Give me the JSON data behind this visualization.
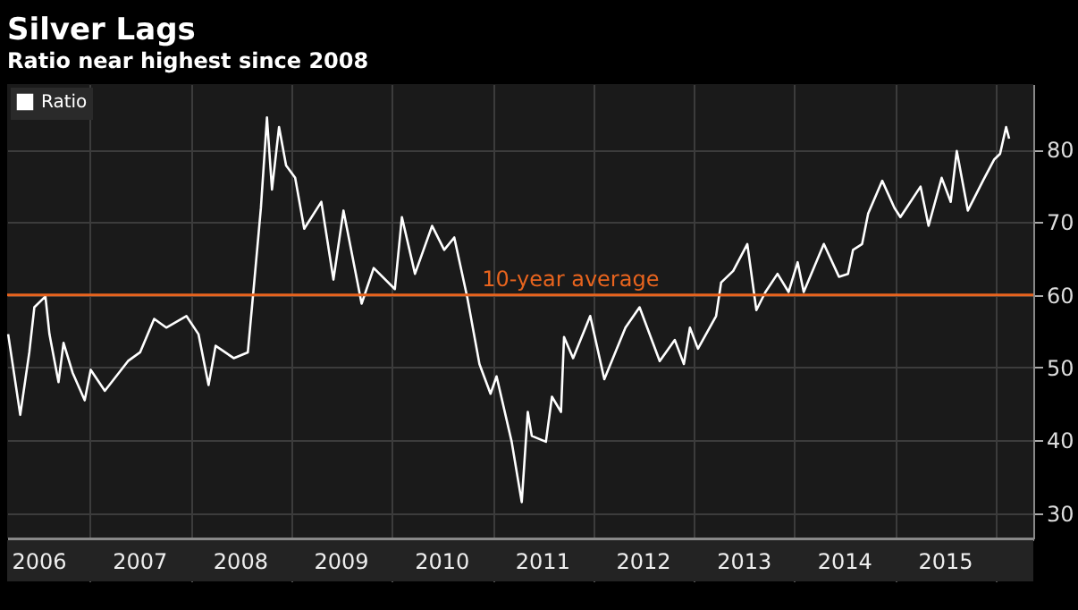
{
  "chart_data": {
    "type": "line",
    "title": "Silver Lags",
    "subtitle": "Ratio near highest since 2008",
    "xlim": [
      2006.18,
      2016.37
    ],
    "xticks": [
      {
        "value": 2006.5,
        "label": "2006"
      },
      {
        "value": 2007,
        "label": null
      },
      {
        "value": 2007.5,
        "label": "2007"
      },
      {
        "value": 2008,
        "label": null
      },
      {
        "value": 2008.5,
        "label": "2008"
      },
      {
        "value": 2009,
        "label": null
      },
      {
        "value": 2009.5,
        "label": "2009"
      },
      {
        "value": 2010,
        "label": null
      },
      {
        "value": 2010.5,
        "label": "2010"
      },
      {
        "value": 2011,
        "label": null
      },
      {
        "value": 2011.5,
        "label": "2011"
      },
      {
        "value": 2012,
        "label": null
      },
      {
        "value": 2012.5,
        "label": "2012"
      },
      {
        "value": 2013,
        "label": null
      },
      {
        "value": 2013.5,
        "label": "2013"
      },
      {
        "value": 2014,
        "label": null
      },
      {
        "value": 2014.5,
        "label": "2014"
      },
      {
        "value": 2015,
        "label": null
      },
      {
        "value": 2015.5,
        "label": "2015"
      },
      {
        "value": 2016,
        "label": null
      }
    ],
    "ylim": [
      26.5,
      89
    ],
    "yticks": [
      30,
      40,
      50,
      60,
      70,
      80
    ],
    "grid": true,
    "legend": "top left",
    "ref_lines": [
      {
        "axis": "y",
        "value": 60,
        "label": "10-year average",
        "color": "#e8641e"
      }
    ],
    "series": [
      {
        "name": "Ratio",
        "color": "#ffffff",
        "x": [
          2006.19,
          2006.31,
          2006.4,
          2006.45,
          2006.56,
          2006.6,
          2006.69,
          2006.74,
          2006.83,
          2006.95,
          2007.01,
          2007.15,
          2007.38,
          2007.5,
          2007.64,
          2007.76,
          2007.96,
          2008.08,
          2008.18,
          2008.25,
          2008.43,
          2008.57,
          2008.63,
          2008.7,
          2008.76,
          2008.81,
          2008.88,
          2008.95,
          2009.04,
          2009.13,
          2009.3,
          2009.42,
          2009.52,
          2009.7,
          2009.82,
          2010.03,
          2010.1,
          2010.23,
          2010.4,
          2010.52,
          2010.62,
          2010.75,
          2010.87,
          2010.98,
          2011.04,
          2011.19,
          2011.29,
          2011.35,
          2011.39,
          2011.53,
          2011.59,
          2011.68,
          2011.71,
          2011.8,
          2011.97,
          2012.11,
          2012.32,
          2012.46,
          2012.66,
          2012.81,
          2012.9,
          2012.96,
          2013.04,
          2013.22,
          2013.27,
          2013.39,
          2013.53,
          2013.62,
          2013.71,
          2013.83,
          2013.94,
          2014.03,
          2014.09,
          2014.29,
          2014.44,
          2014.53,
          2014.58,
          2014.67,
          2014.73,
          2014.87,
          2014.99,
          2015.05,
          2015.25,
          2015.33,
          2015.46,
          2015.55,
          2015.61,
          2015.72,
          2015.87,
          2015.98,
          2016.04,
          2016.1,
          2016.13
        ],
        "values": [
          54.6,
          43.5,
          52.1,
          58.3,
          59.8,
          54.6,
          48,
          53.4,
          49.3,
          45.5,
          49.7,
          46.8,
          50.9,
          52.1,
          56.7,
          55.5,
          57.1,
          54.6,
          47.6,
          53,
          51.3,
          52.1,
          61.2,
          72,
          84.4,
          74.5,
          83.1,
          77.8,
          76.1,
          69.1,
          72.8,
          62.1,
          71.6,
          58.8,
          63.7,
          60.8,
          70.7,
          62.9,
          69.5,
          66.2,
          67.9,
          59.6,
          50.5,
          46.4,
          48.8,
          39.8,
          31.5,
          43.9,
          40.6,
          39.8,
          46,
          43.9,
          54.2,
          51.3,
          57.1,
          48.4,
          55.5,
          58.3,
          50.9,
          53.8,
          50.5,
          55.5,
          52.6,
          57.1,
          61.7,
          63.3,
          67,
          57.9,
          60.4,
          62.9,
          60.4,
          64.5,
          60.4,
          67,
          62.5,
          62.9,
          66.2,
          67,
          71.2,
          75.7,
          72,
          70.7,
          74.9,
          69.5,
          76.1,
          72.8,
          79.8,
          71.6,
          75.7,
          78.6,
          79.4,
          83.1,
          81.5
        ]
      }
    ]
  }
}
